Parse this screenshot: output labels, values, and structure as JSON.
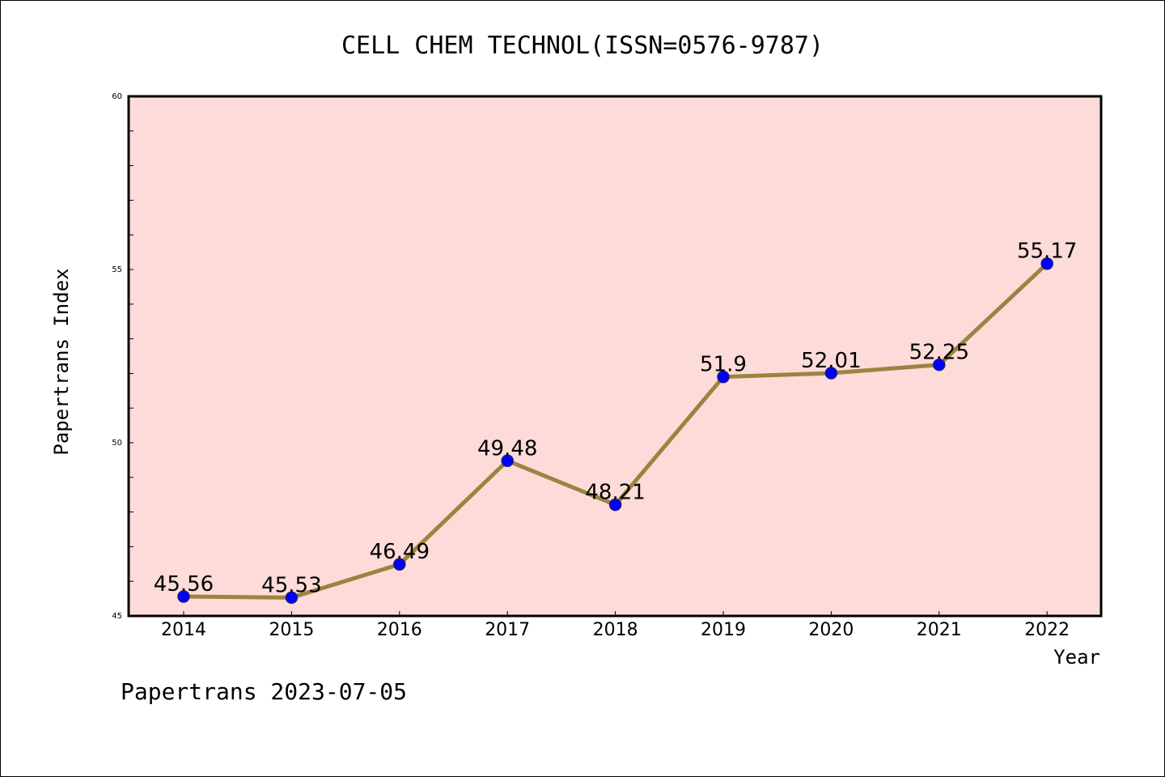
{
  "chart_data": {
    "type": "line",
    "title": "CELL CHEM TECHNOL(ISSN=0576-9787)",
    "xlabel": "Year",
    "ylabel": "Papertrans Index",
    "categories": [
      "2014",
      "2015",
      "2016",
      "2017",
      "2018",
      "2019",
      "2020",
      "2021",
      "2022"
    ],
    "values": [
      45.56,
      45.53,
      46.49,
      49.48,
      48.21,
      51.9,
      52.01,
      52.25,
      55.17
    ],
    "data_labels": [
      "45.56",
      "45.53",
      "46.49",
      "49.48",
      "48.21",
      "51.9",
      "52.01",
      "52.25",
      "55.17"
    ],
    "ylim": [
      45,
      60
    ],
    "yticks": [
      "45",
      "50",
      "55",
      "60"
    ],
    "grid": false,
    "legend": "none",
    "colors": {
      "plot_background": "#fddbd8",
      "line": "#9b8442",
      "marker_fill": "#0000ff",
      "marker_edge": "#1a1a8a"
    }
  },
  "footer": "Papertrans 2023-07-05"
}
